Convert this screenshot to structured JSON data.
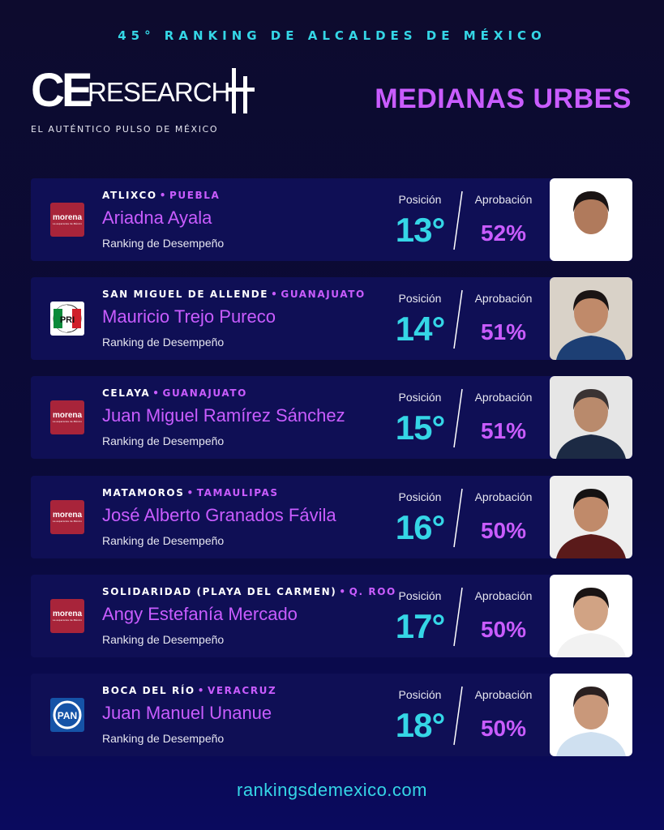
{
  "header": {
    "top_title": "45° RANKING DE ALCALDES DE MÉXICO",
    "logo_ce": "CE",
    "logo_research": "RESEARCH",
    "logo_tagline": "EL AUTÉNTICO PULSO DE MÉXICO",
    "category": "MEDIANAS URBES"
  },
  "labels": {
    "position": "Posición",
    "approval": "Aprobación",
    "ranking": "Ranking de Desempeño",
    "separator": "•"
  },
  "mayors": [
    {
      "city": "ATLIXCO",
      "state": "PUEBLA",
      "name": "Ariadna Ayala",
      "position": "13°",
      "approval": "52%",
      "party": "morena",
      "party_text": "morena",
      "party_sub": "La esperanza de México",
      "photo_bg": "#ffffff",
      "shirt": "#ffffff",
      "hair": "#1a1414",
      "skin": "#b07a5c"
    },
    {
      "city": "SAN MIGUEL DE ALLENDE",
      "state": "GUANAJUATO",
      "name": "Mauricio Trejo Pureco",
      "position": "14°",
      "approval": "51%",
      "party": "pri",
      "party_text": "PRI",
      "party_sub": "",
      "photo_bg": "#d9d2c8",
      "shirt": "#1d3f74",
      "hair": "#1a1414",
      "skin": "#c08a6a"
    },
    {
      "city": "CELAYA",
      "state": "GUANAJUATO",
      "name": "Juan Miguel Ramírez Sánchez",
      "position": "15°",
      "approval": "51%",
      "party": "morena",
      "party_text": "morena",
      "party_sub": "La esperanza de México",
      "photo_bg": "#e6e6e6",
      "shirt": "#1c2a44",
      "hair": "#3a3333",
      "skin": "#b98a6c"
    },
    {
      "city": "MATAMOROS",
      "state": "TAMAULIPAS",
      "name": "José Alberto Granados Fávila",
      "position": "16°",
      "approval": "50%",
      "party": "morena",
      "party_text": "morena",
      "party_sub": "La esperanza de México",
      "photo_bg": "#eeeeee",
      "shirt": "#5a1a1a",
      "hair": "#151212",
      "skin": "#c08a6a"
    },
    {
      "city": "SOLIDARIDAD (PLAYA DEL CARMEN)",
      "state": "Q. ROO",
      "name": "Angy Estefanía Mercado",
      "position": "17°",
      "approval": "50%",
      "party": "morena",
      "party_text": "morena",
      "party_sub": "La esperanza de México",
      "photo_bg": "#ffffff",
      "shirt": "#f2f2f2",
      "hair": "#1a1414",
      "skin": "#d1a384"
    },
    {
      "city": "BOCA DEL RÍO",
      "state": "VERACRUZ",
      "name": "Juan Manuel Unanue",
      "position": "18°",
      "approval": "50%",
      "party": "pan",
      "party_text": "PAN",
      "party_sub": "",
      "photo_bg": "#ffffff",
      "shirt": "#cfe0f0",
      "hair": "#2a2020",
      "skin": "#c9987a"
    }
  ],
  "footer": {
    "url": "rankingsdemexico.com"
  },
  "colors": {
    "cyan": "#35d6e6",
    "purple": "#c95cff",
    "card": "#0f0f55",
    "background": "#0d0b2e"
  }
}
